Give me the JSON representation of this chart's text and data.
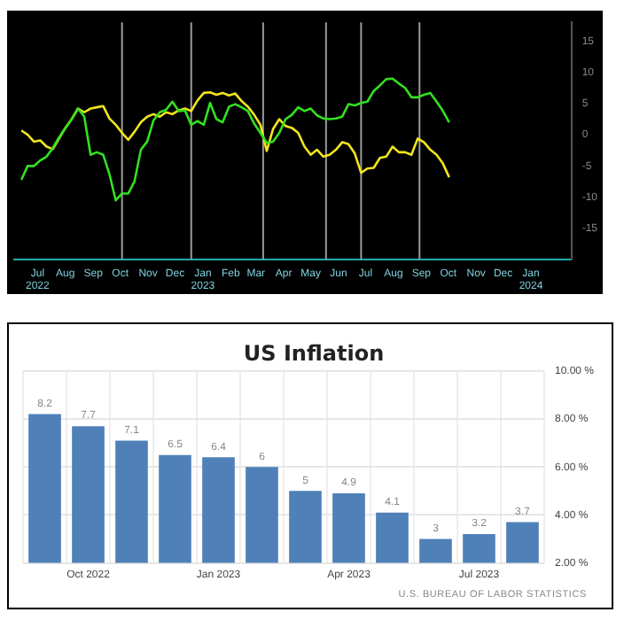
{
  "chart_data": [
    {
      "type": "line",
      "marker": "none",
      "grid": false,
      "xlim": [
        "2022-06-05",
        "2024-02-15"
      ],
      "ylim": [
        -20,
        18
      ],
      "xticks": [
        {
          "value": "2022-07-01",
          "label": "Jul\n2022"
        },
        {
          "value": "2022-08-01",
          "label": "Aug"
        },
        {
          "value": "2022-09-01",
          "label": "Sep"
        },
        {
          "value": "2022-10-01",
          "label": "Oct"
        },
        {
          "value": "2022-11-01",
          "label": "Nov"
        },
        {
          "value": "2022-12-01",
          "label": "Dec"
        },
        {
          "value": "2023-01-01",
          "label": "Jan\n2023"
        },
        {
          "value": "2023-02-01",
          "label": "Feb"
        },
        {
          "value": "2023-03-01",
          "label": "Mar"
        },
        {
          "value": "2023-04-01",
          "label": "Apr"
        },
        {
          "value": "2023-05-01",
          "label": "May"
        },
        {
          "value": "2023-06-01",
          "label": "Jun"
        },
        {
          "value": "2023-07-01",
          "label": "Jul"
        },
        {
          "value": "2023-08-01",
          "label": "Aug"
        },
        {
          "value": "2023-09-01",
          "label": "Sep"
        },
        {
          "value": "2023-10-01",
          "label": "Oct"
        },
        {
          "value": "2023-11-01",
          "label": "Nov"
        },
        {
          "value": "2023-12-01",
          "label": "Dec"
        },
        {
          "value": "2024-01-01",
          "label": "Jan\n2024"
        }
      ],
      "yticks": [
        -15,
        -10,
        -5,
        0,
        5,
        10,
        15
      ],
      "ref_lines": [
        {
          "axis": "x",
          "value": "2022-10-03",
          "color": "#9a9a9a"
        },
        {
          "axis": "x",
          "value": "2022-12-19",
          "color": "#9a9a9a"
        },
        {
          "axis": "x",
          "value": "2023-03-09",
          "color": "#9a9a9a"
        },
        {
          "axis": "x",
          "value": "2023-05-18",
          "color": "#9a9a9a"
        },
        {
          "axis": "x",
          "value": "2023-06-26",
          "color": "#9a9a9a"
        },
        {
          "axis": "x",
          "value": "2023-08-30",
          "color": "#9a9a9a"
        }
      ],
      "x": [
        "2022-06-13",
        "2022-06-20",
        "2022-06-27",
        "2022-07-04",
        "2022-07-11",
        "2022-07-18",
        "2022-07-25",
        "2022-08-01",
        "2022-08-08",
        "2022-08-15",
        "2022-08-22",
        "2022-08-29",
        "2022-09-05",
        "2022-09-12",
        "2022-09-19",
        "2022-09-26",
        "2022-10-03",
        "2022-10-10",
        "2022-10-17",
        "2022-10-24",
        "2022-10-31",
        "2022-11-07",
        "2022-11-14",
        "2022-11-21",
        "2022-11-28",
        "2022-12-05",
        "2022-12-12",
        "2022-12-19",
        "2022-12-26",
        "2023-01-02",
        "2023-01-09",
        "2023-01-16",
        "2023-01-23",
        "2023-01-30",
        "2023-02-06",
        "2023-02-13",
        "2023-02-20",
        "2023-02-27",
        "2023-03-06",
        "2023-03-13",
        "2023-03-20",
        "2023-03-27",
        "2023-04-03",
        "2023-04-10",
        "2023-04-17",
        "2023-04-24",
        "2023-05-01",
        "2023-05-08",
        "2023-05-15",
        "2023-05-22",
        "2023-05-29",
        "2023-06-05",
        "2023-06-12",
        "2023-06-19",
        "2023-06-26",
        "2023-07-03",
        "2023-07-10",
        "2023-07-17",
        "2023-07-24",
        "2023-07-31",
        "2023-08-07",
        "2023-08-14",
        "2023-08-21",
        "2023-08-28",
        "2023-09-04",
        "2023-09-11",
        "2023-09-18",
        "2023-09-25",
        "2023-10-02"
      ],
      "series": [
        {
          "color": "#33e01f",
          "values": [
            -7.2,
            -5.0,
            -5.0,
            -4.1,
            -3.5,
            -2.1,
            -0.4,
            1.1,
            2.5,
            4.2,
            2.9,
            -3.2,
            -2.8,
            -3.2,
            -6.3,
            -10.5,
            -9.4,
            -9.4,
            -7.4,
            -2.4,
            -1.1,
            2.3,
            3.6,
            4.0,
            5.3,
            3.8,
            3.9,
            1.6,
            2.2,
            1.6,
            5.1,
            2.5,
            2.0,
            4.5,
            4.9,
            4.4,
            3.8,
            1.8,
            0.3,
            -1.3,
            -1.1,
            0.3,
            2.5,
            3.2,
            4.4,
            3.8,
            4.2,
            3.1,
            2.6,
            2.5,
            2.6,
            2.9,
            4.9,
            4.7,
            5.1,
            5.3,
            7.0,
            7.9,
            8.9,
            9.0,
            8.2,
            7.5,
            6.0,
            6.0,
            6.4,
            6.7,
            5.3,
            3.8,
            2.0
          ]
        },
        {
          "color": "#f2e51c",
          "values": [
            0.7,
            0,
            -1.1,
            -0.9,
            -1.9,
            -2.3,
            -0.6,
            1.1,
            2.5,
            4.2,
            3.6,
            4.2,
            4.4,
            4.6,
            2.6,
            1.6,
            0.3,
            -0.8,
            0.5,
            2.0,
            2.9,
            3.3,
            2.9,
            3.6,
            3.3,
            3.9,
            4.2,
            3.8,
            5.5,
            6.7,
            6.8,
            6.4,
            6.7,
            6.3,
            6.6,
            5.4,
            4.5,
            3.2,
            1.6,
            -2.6,
            0.9,
            2.5,
            1.4,
            1.1,
            0.3,
            -1.9,
            -3.2,
            -2.4,
            -3.5,
            -3.2,
            -2.4,
            -1.2,
            -1.5,
            -3.0,
            -6.1,
            -5.4,
            -5.3,
            -3.7,
            -3.5,
            -1.9,
            -2.8,
            -2.8,
            -3.2,
            -0.6,
            -1.2,
            -2.4,
            -3.2,
            -4.6,
            -6.8
          ]
        }
      ]
    },
    {
      "type": "bar",
      "title": "US Inflation",
      "color": "#4f81b8",
      "grid": true,
      "data_labels": true,
      "categories": [
        null,
        "Oct 2022",
        null,
        null,
        "Jan 2023",
        null,
        null,
        "Apr 2023",
        null,
        null,
        "Jul 2023",
        null
      ],
      "values": [
        8.2,
        7.7,
        7.1,
        6.5,
        6.4,
        6,
        5,
        4.9,
        4.1,
        3,
        3.2,
        3.7
      ],
      "ylim": [
        2,
        10
      ],
      "yticks": [
        {
          "value": 2,
          "label": "2.00 %"
        },
        {
          "value": 4,
          "label": "4.00 %"
        },
        {
          "value": 6,
          "label": "6.00 %"
        },
        {
          "value": 8,
          "label": "8.00 %"
        },
        {
          "value": 10,
          "label": "10.00 %"
        }
      ],
      "annotations": [
        "U.S. BUREAU OF LABOR STATISTICS"
      ]
    }
  ]
}
